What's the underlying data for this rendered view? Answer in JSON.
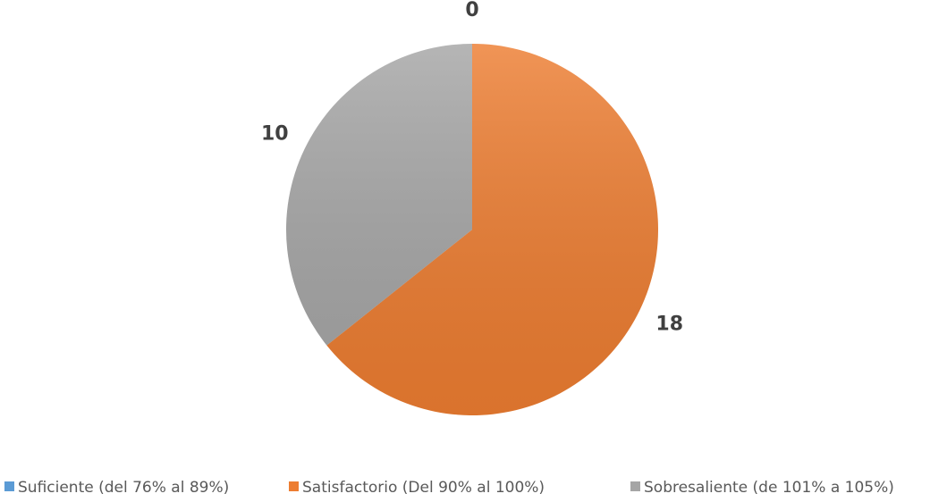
{
  "chart_data": {
    "type": "pie",
    "categories": [
      "Suficiente (del 76% al 89%)",
      "Satisfactorio (Del 90% al 100%)",
      "Sobresaliente (de 101% a 105%)"
    ],
    "values": [
      0,
      18,
      10
    ],
    "colors": [
      "#5b9bd5",
      "#ed7d31",
      "#a5a5a5"
    ],
    "legend": "bottom"
  }
}
